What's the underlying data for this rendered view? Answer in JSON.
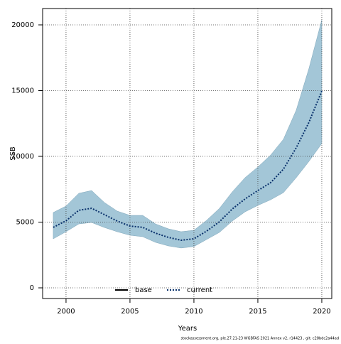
{
  "chart_data": {
    "type": "line",
    "x": [
      1999,
      2000,
      2001,
      2002,
      2003,
      2004,
      2005,
      2006,
      2007,
      2008,
      2009,
      2010,
      2011,
      2012,
      2013,
      2014,
      2015,
      2016,
      2017,
      2018,
      2019,
      2020
    ],
    "series": [
      {
        "name": "base",
        "color": "#000000"
      },
      {
        "name": "current",
        "color": "#08306b",
        "values": [
          4600,
          5100,
          5900,
          6050,
          5570,
          5080,
          4700,
          4600,
          4160,
          3840,
          3620,
          3730,
          4320,
          5030,
          6000,
          6760,
          7400,
          8000,
          9030,
          10650,
          12600,
          14970
        ]
      }
    ],
    "interval": {
      "color": "#a3c6d7",
      "lower": [
        3730,
        4270,
        4860,
        4970,
        4590,
        4270,
        4000,
        3890,
        3460,
        3190,
        3030,
        3140,
        3680,
        4220,
        5080,
        5780,
        6270,
        6700,
        7240,
        8380,
        9620,
        10970
      ],
      "upper": [
        5730,
        6220,
        7190,
        7400,
        6490,
        5840,
        5510,
        5510,
        4860,
        4490,
        4270,
        4380,
        5140,
        6050,
        7300,
        8380,
        9190,
        10100,
        11300,
        13510,
        16700,
        20380
      ]
    },
    "xlabel": "Years",
    "ylabel": "SSB",
    "xlim": [
      1998.17,
      2020.78
    ],
    "ylim": [
      -811,
      21243
    ],
    "xticks": [
      2000,
      2005,
      2010,
      2015,
      2020
    ],
    "yticks": [
      0,
      5000,
      10000,
      15000,
      20000
    ],
    "grid": true,
    "legend": "bottom",
    "footnote": "stockassessment.org, ple.27.21-23 WGBFAS 2021 Annex v2, r14423 , git: c28bdc2a44ad"
  }
}
